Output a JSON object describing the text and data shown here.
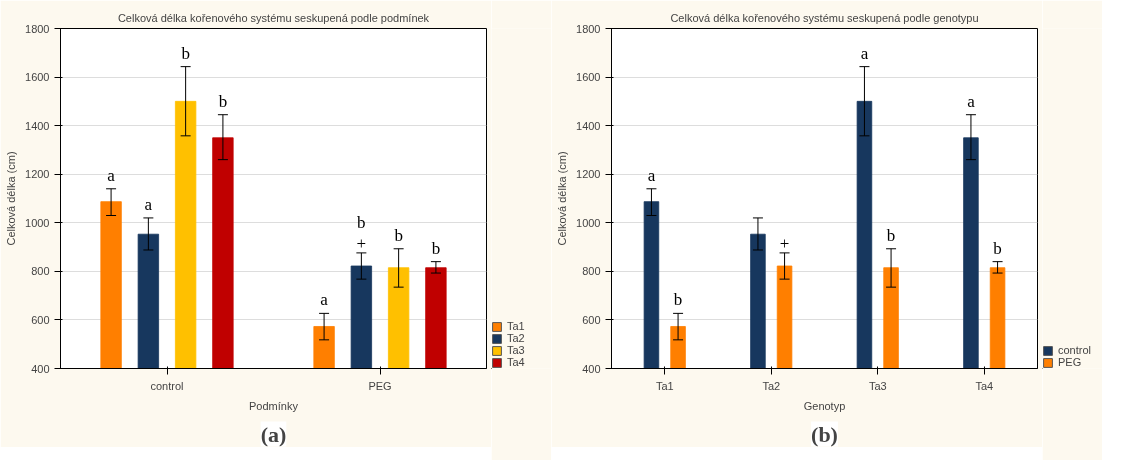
{
  "chart_data": [
    {
      "type": "bar",
      "title": "Celková délka kořenového systému seskupená podle podmínek",
      "xlabel": "Podmínky",
      "ylabel": "Celková délka (cm)",
      "categories": [
        "control",
        "PEG"
      ],
      "ylim": [
        400,
        1800
      ],
      "yticks": [
        400,
        600,
        800,
        1000,
        1200,
        1400,
        1600,
        1800
      ],
      "grid": "y",
      "legend": "bottom right",
      "annotations": [
        "(a)"
      ],
      "series": [
        {
          "name": "Ta1",
          "color": "#ff7f00",
          "values": [
            1087,
            573
          ],
          "errors": [
            [
              1030,
              1140
            ],
            [
              518,
              627
            ]
          ],
          "value_labels": [
            "a",
            "a"
          ]
        },
        {
          "name": "Ta2",
          "color": "#17375e",
          "values": [
            953,
            822
          ],
          "errors": [
            [
              888,
              1020
            ],
            [
              768,
              876
            ]
          ],
          "value_labels": [
            "a",
            "b\n+"
          ]
        },
        {
          "name": "Ta3",
          "color": "#ffc000",
          "values": [
            1500,
            815
          ],
          "errors": [
            [
              1358,
              1643
            ],
            [
              735,
              893
            ]
          ],
          "value_labels": [
            "b",
            "b"
          ]
        },
        {
          "name": "Ta4",
          "color": "#c00000",
          "values": [
            1350,
            815
          ],
          "errors": [
            [
              1260,
              1445
            ],
            [
              793,
              840
            ]
          ],
          "value_labels": [
            "b",
            "b"
          ]
        }
      ]
    },
    {
      "type": "bar",
      "title": "Celková délka kořenového systému seskupená podle genotypu",
      "xlabel": "Genotyp",
      "ylabel": "Celková délka (cm)",
      "categories": [
        "Ta1",
        "Ta2",
        "Ta3",
        "Ta4"
      ],
      "ylim": [
        400,
        1800
      ],
      "yticks": [
        400,
        600,
        800,
        1000,
        1200,
        1400,
        1600,
        1800
      ],
      "grid": "y",
      "legend": "bottom right",
      "annotations": [
        "(b)"
      ],
      "series": [
        {
          "name": "control",
          "color": "#17375e",
          "values": [
            1087,
            953,
            1500,
            1350
          ],
          "errors": [
            [
              1030,
              1140
            ],
            [
              888,
              1020
            ],
            [
              1358,
              1643
            ],
            [
              1260,
              1445
            ]
          ],
          "value_labels": [
            "a",
            null,
            "a",
            "a"
          ]
        },
        {
          "name": "PEG",
          "color": "#ff7f00",
          "values": [
            573,
            822,
            815,
            815
          ],
          "errors": [
            [
              518,
              627
            ],
            [
              768,
              876
            ],
            [
              735,
              893
            ],
            [
              793,
              840
            ]
          ],
          "value_labels": [
            "b",
            "+",
            "b",
            "b"
          ]
        }
      ]
    }
  ]
}
